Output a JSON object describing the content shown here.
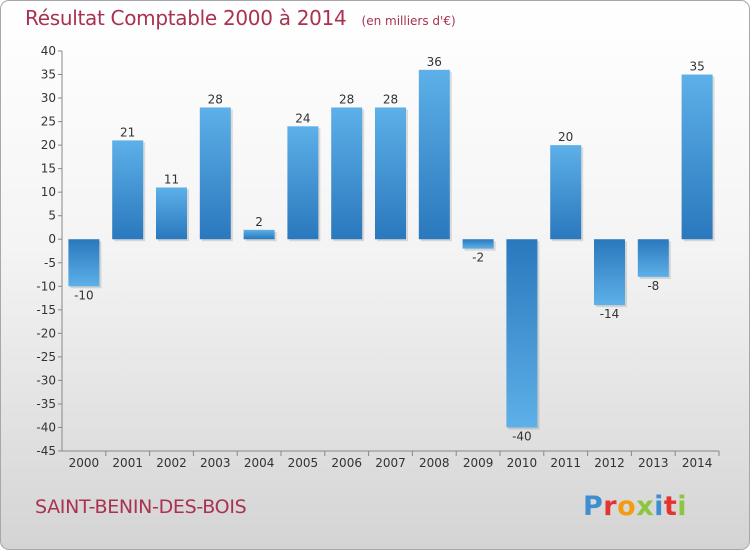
{
  "header": {
    "title": "Résultat Comptable 2000 à 2014",
    "unit": "(en milliers d'€)"
  },
  "commune": "SAINT-BENIN-DES-BOIS",
  "logo": {
    "text": "Proxiti",
    "letters": [
      {
        "ch": "P",
        "color": "#3f8fd0"
      },
      {
        "ch": "r",
        "color": "#e3342f"
      },
      {
        "ch": "o",
        "color": "#f39c12"
      },
      {
        "ch": "x",
        "color": "#8cc63f"
      },
      {
        "ch": "i",
        "color": "#3f8fd0"
      },
      {
        "ch": "t",
        "color": "#e3342f"
      },
      {
        "ch": "i",
        "color": "#8cc63f"
      }
    ]
  },
  "chart_data": {
    "type": "bar",
    "title": "Résultat Comptable 2000 à 2014",
    "categories": [
      "2000",
      "2001",
      "2002",
      "2003",
      "2004",
      "2005",
      "2006",
      "2007",
      "2008",
      "2009",
      "2010",
      "2011",
      "2012",
      "2013",
      "2014"
    ],
    "values": [
      -10,
      21,
      11,
      28,
      2,
      24,
      28,
      28,
      36,
      -2,
      -40,
      20,
      -14,
      -8,
      35
    ],
    "ylim": [
      -45,
      40
    ],
    "ytick_step": 5,
    "grid": false,
    "bar_color": "#3a8fd4",
    "bar_highlight": "#5db0e8",
    "bar_shadow": "#2a78bd"
  }
}
